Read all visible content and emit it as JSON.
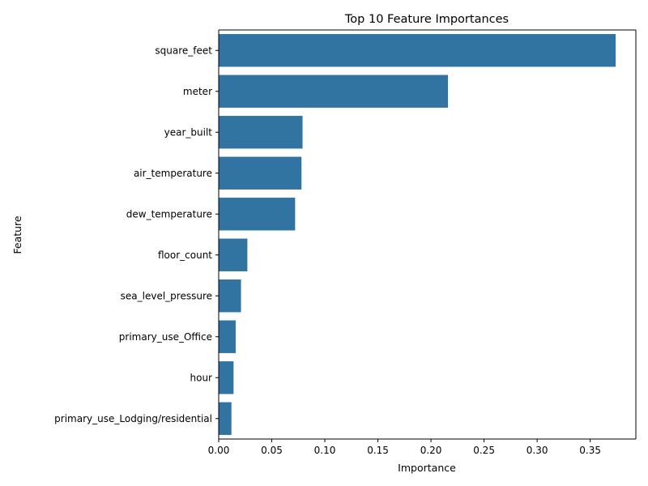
{
  "chart_data": {
    "type": "bar",
    "orientation": "horizontal",
    "title": "Top 10 Feature Importances",
    "xlabel": "Importance",
    "ylabel": "Feature",
    "categories": [
      "square_feet",
      "meter",
      "year_built",
      "air_temperature",
      "dew_temperature",
      "floor_count",
      "sea_level_pressure",
      "primary_use_Office",
      "hour",
      "primary_use_Lodging/residential"
    ],
    "values": [
      0.374,
      0.216,
      0.079,
      0.078,
      0.072,
      0.027,
      0.021,
      0.016,
      0.014,
      0.012
    ],
    "xlim": [
      0,
      0.393
    ],
    "xticks": [
      0.0,
      0.05,
      0.1,
      0.15,
      0.2,
      0.25,
      0.3,
      0.35
    ],
    "xtick_labels": [
      "0.00",
      "0.05",
      "0.10",
      "0.15",
      "0.20",
      "0.25",
      "0.30",
      "0.35"
    ],
    "bar_color": "#3274a1",
    "grid": false,
    "legend": "none"
  }
}
